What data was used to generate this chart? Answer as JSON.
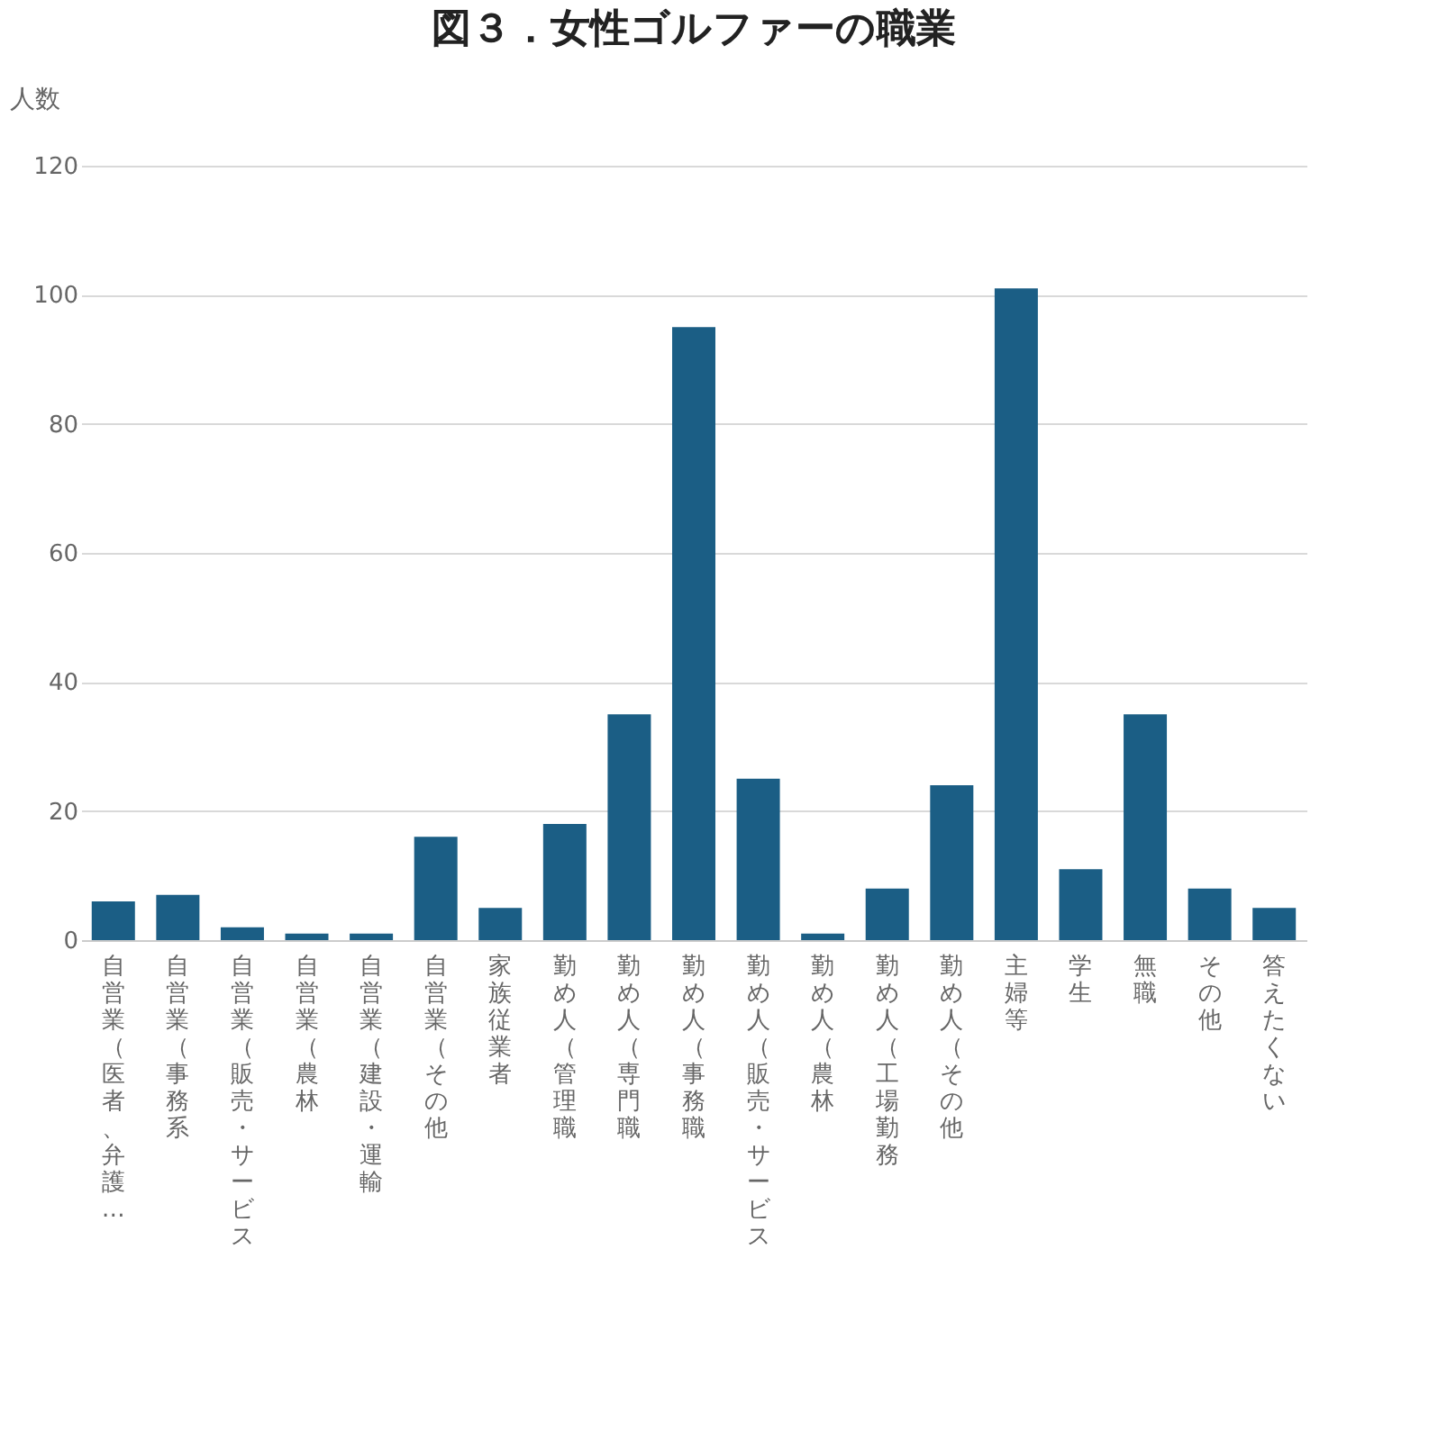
{
  "chart_data": {
    "type": "bar",
    "title": "図３．女性ゴルファーの職業",
    "ylabel": "人数",
    "categories": [
      "自営業（医者、弁護…",
      "自営業（事務系",
      "自営業（販売・サービス",
      "自営業（農林",
      "自営業（建設・運輸",
      "自営業（その他",
      "家族従業者",
      "勤め人（管理職",
      "勤め人（専門職",
      "勤め人（事務職",
      "勤め人（販売・サービス",
      "勤め人（農林",
      "勤め人（工場勤務",
      "勤め人（その他",
      "主婦等",
      "学生",
      "無職",
      "その他",
      "答えたくない"
    ],
    "values": [
      6,
      7,
      2,
      1,
      1,
      16,
      5,
      18,
      35,
      95,
      25,
      1,
      8,
      24,
      101,
      11,
      35,
      8,
      5
    ],
    "color": "#1b5e85",
    "ylim": [
      0,
      120
    ],
    "yticks": [
      0,
      20,
      40,
      60,
      80,
      100,
      120
    ],
    "grid": "y"
  }
}
